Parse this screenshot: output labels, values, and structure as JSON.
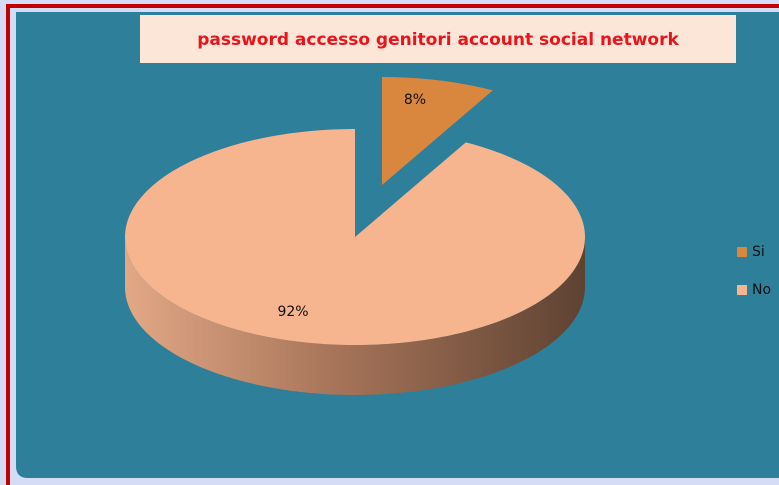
{
  "chart_data": {
    "type": "pie",
    "title": "password accesso genitori  account social network",
    "categories": [
      "Si",
      "No"
    ],
    "values": [
      8,
      92
    ],
    "value_labels": [
      "8%",
      "92%"
    ],
    "colors": [
      "#d9873e",
      "#f6b48f"
    ],
    "legend": "right"
  }
}
